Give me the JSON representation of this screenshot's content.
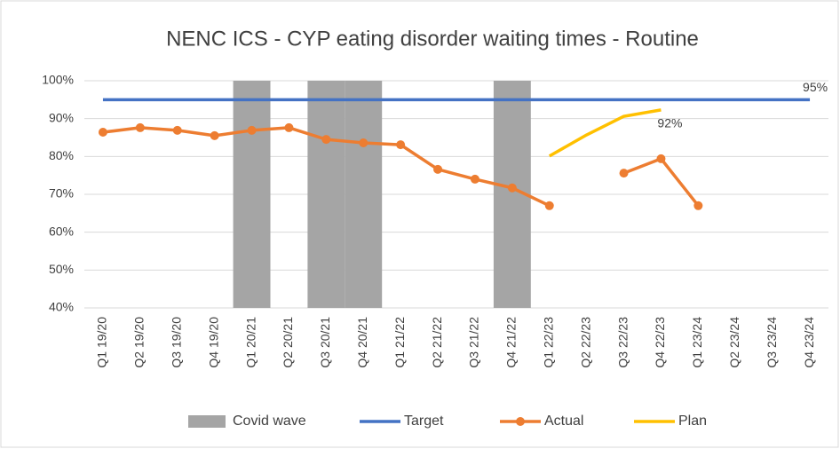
{
  "chart_data": {
    "type": "combo",
    "title": "NENC ICS - CYP eating disorder waiting times - Routine",
    "categories": [
      "Q1 19/20",
      "Q2 19/20",
      "Q3 19/20",
      "Q4 19/20",
      "Q1 20/21",
      "Q2 20/21",
      "Q3 20/21",
      "Q4 20/21",
      "Q1 21/22",
      "Q2 21/22",
      "Q3 21/22",
      "Q4 21/22",
      "Q1 22/23",
      "Q2 22/23",
      "Q3 22/23",
      "Q4 22/23",
      "Q1 23/24",
      "Q2 23/24",
      "Q3 23/24",
      "Q4 23/24"
    ],
    "series": [
      {
        "name": "Covid wave",
        "kind": "bar",
        "color": "#a5a5a5",
        "values": [
          null,
          null,
          null,
          null,
          100,
          null,
          100,
          100,
          null,
          null,
          null,
          100,
          null,
          null,
          null,
          null,
          null,
          null,
          null,
          null
        ]
      },
      {
        "name": "Target",
        "kind": "line",
        "color": "#4472c4",
        "values": [
          95,
          95,
          95,
          95,
          95,
          95,
          95,
          95,
          95,
          95,
          95,
          95,
          95,
          95,
          95,
          95,
          95,
          95,
          95,
          95
        ],
        "value_labels": [
          null,
          null,
          null,
          null,
          null,
          null,
          null,
          null,
          null,
          null,
          null,
          null,
          null,
          null,
          null,
          null,
          null,
          null,
          null,
          "95%"
        ]
      },
      {
        "name": "Actual",
        "kind": "line",
        "markers": true,
        "color": "#ed7d31",
        "values": [
          86.4,
          87.6,
          86.9,
          85.5,
          86.9,
          87.6,
          84.5,
          83.6,
          83.1,
          76.6,
          74.0,
          71.7,
          67.0,
          null,
          75.6,
          79.4,
          67.0,
          null,
          null,
          null
        ]
      },
      {
        "name": "Plan",
        "kind": "line",
        "color": "#ffc000",
        "values": [
          null,
          null,
          null,
          null,
          null,
          null,
          null,
          null,
          null,
          null,
          null,
          null,
          80.1,
          85.7,
          90.6,
          92.3,
          null,
          null,
          null,
          null
        ],
        "value_labels": [
          null,
          null,
          null,
          null,
          null,
          null,
          null,
          null,
          null,
          null,
          null,
          null,
          null,
          null,
          null,
          "92%",
          null,
          null,
          null,
          null
        ]
      }
    ],
    "ylim": [
      40,
      100
    ],
    "yticks": [
      {
        "value": 40,
        "label": "40%"
      },
      {
        "value": 50,
        "label": "50%"
      },
      {
        "value": 60,
        "label": "60%"
      },
      {
        "value": 70,
        "label": "70%"
      },
      {
        "value": 80,
        "label": "80%"
      },
      {
        "value": 90,
        "label": "90%"
      },
      {
        "value": 100,
        "label": "100%"
      }
    ],
    "grid": true,
    "legend": "bottom"
  }
}
